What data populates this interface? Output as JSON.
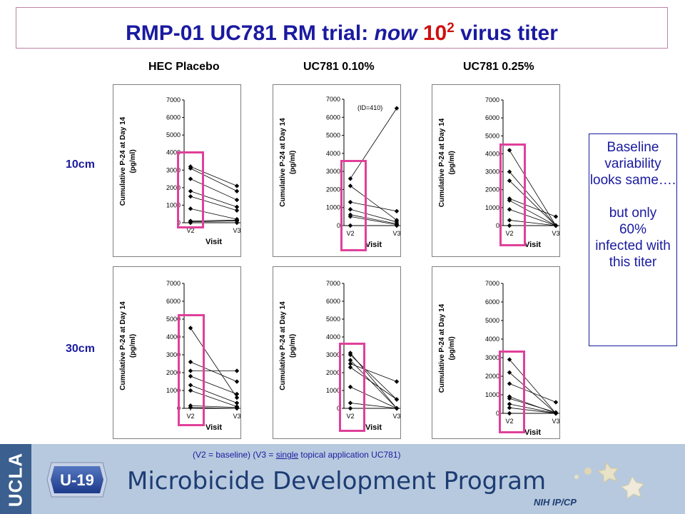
{
  "title": {
    "main": "RMP-01 UC781 RM trial: ",
    "now": "now",
    "ten": "10",
    "exp": "2",
    "rest": " virus titer"
  },
  "columns": [
    "HEC Placebo",
    "UC781 0.10%",
    "UC781 0.25%"
  ],
  "rows": [
    "10cm",
    "30cm"
  ],
  "note": {
    "line1": "Baseline variability looks same….",
    "line2": "but only",
    "line3": "60%",
    "line4": "infected with this titer"
  },
  "footer": {
    "baseline_note_a": "(V2 = baseline) (V3 = ",
    "baseline_note_u": "single",
    "baseline_note_b": " topical application UC781)",
    "program": "Microbicide Development Program",
    "nih": "NIH IP/CP",
    "ucla": "UCLA",
    "logo": "U-19"
  },
  "colors": {
    "title": "#1a1aa0",
    "highlight": "#d01010",
    "box": "#e0409a",
    "footer_bg": "#b7c9de",
    "footer_strip": "#3b5f8e"
  },
  "chart_data": [
    {
      "type": "line",
      "row": "10cm",
      "column": "HEC Placebo",
      "ylabel": "Cumulative P-24 at Day 14 (pg/ml)",
      "xlabel": "Visit",
      "categories": [
        "V2",
        "V3"
      ],
      "ylim": [
        0,
        7000
      ],
      "yticks": [
        0,
        1000,
        2000,
        3000,
        4000,
        5000,
        6000,
        7000
      ],
      "annotation": "",
      "series": [
        [
          3200,
          2100
        ],
        [
          3100,
          1800
        ],
        [
          2500,
          1300
        ],
        [
          1800,
          900
        ],
        [
          1500,
          700
        ],
        [
          800,
          200
        ],
        [
          100,
          150
        ],
        [
          50,
          100
        ],
        [
          0,
          0
        ]
      ]
    },
    {
      "type": "line",
      "row": "10cm",
      "column": "UC781 0.10%",
      "ylabel": "Cumulative P-24 at Day 14 (pg/ml)",
      "xlabel": "Visit",
      "categories": [
        "V2",
        "V3"
      ],
      "ylim": [
        0,
        7000
      ],
      "yticks": [
        0,
        1000,
        2000,
        3000,
        4000,
        5000,
        6000,
        7000
      ],
      "annotation": "(ID=410)",
      "series": [
        [
          2600,
          6500
        ],
        [
          2200,
          300
        ],
        [
          1300,
          800
        ],
        [
          900,
          200
        ],
        [
          600,
          100
        ],
        [
          500,
          50
        ],
        [
          0,
          0
        ]
      ]
    },
    {
      "type": "line",
      "row": "10cm",
      "column": "UC781 0.25%",
      "ylabel": "Cumulative P-24 at Day 14 (pg/ml)",
      "xlabel": "Visit",
      "categories": [
        "V2",
        "V3"
      ],
      "ylim": [
        0,
        7000
      ],
      "yticks": [
        0,
        1000,
        2000,
        3000,
        4000,
        5000,
        6000,
        7000
      ],
      "annotation": "",
      "series": [
        [
          4200,
          0
        ],
        [
          3000,
          0
        ],
        [
          2500,
          0
        ],
        [
          1500,
          500
        ],
        [
          1400,
          0
        ],
        [
          900,
          0
        ],
        [
          300,
          0
        ],
        [
          0,
          0
        ]
      ]
    },
    {
      "type": "line",
      "row": "30cm",
      "column": "HEC Placebo",
      "ylabel": "Cumulative P-24 at Day 14 (pg/ml)",
      "xlabel": "Visit",
      "categories": [
        "V2",
        "V3"
      ],
      "ylim": [
        0,
        7000
      ],
      "yticks": [
        0,
        1000,
        2000,
        3000,
        4000,
        5000,
        6000,
        7000
      ],
      "annotation": "",
      "series": [
        [
          4500,
          600
        ],
        [
          2600,
          1500
        ],
        [
          2100,
          2100
        ],
        [
          1800,
          800
        ],
        [
          1300,
          300
        ],
        [
          1000,
          100
        ],
        [
          150,
          50
        ],
        [
          50,
          0
        ]
      ]
    },
    {
      "type": "line",
      "row": "30cm",
      "column": "UC781 0.10%",
      "ylabel": "Cumulative P-24 at Day 14 (pg/ml)",
      "xlabel": "Visit",
      "categories": [
        "V2",
        "V3"
      ],
      "ylim": [
        0,
        7000
      ],
      "yticks": [
        0,
        1000,
        2000,
        3000,
        4000,
        5000,
        6000,
        7000
      ],
      "annotation": "",
      "series": [
        [
          3100,
          0
        ],
        [
          3000,
          500
        ],
        [
          2700,
          0
        ],
        [
          2500,
          1500
        ],
        [
          2300,
          500
        ],
        [
          1200,
          0
        ],
        [
          300,
          0
        ],
        [
          0,
          0
        ]
      ]
    },
    {
      "type": "line",
      "row": "30cm",
      "column": "UC781 0.25%",
      "ylabel": "Cumulative P-24 at Day 14 (pg/ml)",
      "xlabel": "Visit",
      "categories": [
        "V2",
        "V3"
      ],
      "ylim": [
        0,
        7000
      ],
      "yticks": [
        0,
        1000,
        2000,
        3000,
        4000,
        5000,
        6000,
        7000
      ],
      "annotation": "",
      "series": [
        [
          2900,
          0
        ],
        [
          2200,
          0
        ],
        [
          1600,
          600
        ],
        [
          900,
          0
        ],
        [
          800,
          50
        ],
        [
          500,
          0
        ],
        [
          300,
          0
        ],
        [
          0,
          0
        ]
      ]
    }
  ]
}
